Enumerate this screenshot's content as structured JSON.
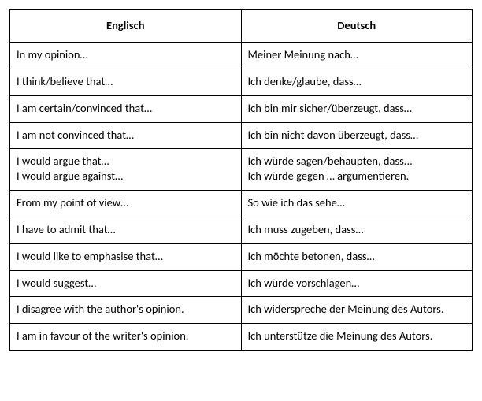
{
  "table": {
    "columns": [
      "Englisch",
      "Deutsch"
    ],
    "column_widths": [
      "50%",
      "50%"
    ],
    "header_font_weight": "bold",
    "header_align": "center",
    "cell_align": "left",
    "border_color": "#000000",
    "background_color": "#ffffff",
    "text_color": "#000000",
    "font_family": "Calibri",
    "font_size_pt": 11,
    "rows": [
      {
        "en": [
          "In my opinion…"
        ],
        "de": [
          "Meiner Meinung nach…"
        ]
      },
      {
        "en": [
          "I think/believe that…"
        ],
        "de": [
          "Ich denke/glaube, dass…"
        ]
      },
      {
        "en": [
          "I am certain/convinced that…"
        ],
        "de": [
          "Ich bin mir sicher/überzeugt, dass…"
        ]
      },
      {
        "en": [
          "I am not convinced that…"
        ],
        "de": [
          "Ich bin nicht davon überzeugt, dass…"
        ]
      },
      {
        "en": [
          "I would argue that…",
          "I would argue against…"
        ],
        "de": [
          "Ich würde sagen/behaupten, dass...",
          "Ich würde gegen … argumentieren."
        ]
      },
      {
        "en": [
          "From my point of view…"
        ],
        "de": [
          "So wie ich das sehe…"
        ]
      },
      {
        "en": [
          "I have to admit that…"
        ],
        "de": [
          "Ich muss zugeben, dass…"
        ]
      },
      {
        "en": [
          "I would like to emphasise that…"
        ],
        "de": [
          "Ich möchte betonen, dass…"
        ]
      },
      {
        "en": [
          "I would suggest…"
        ],
        "de": [
          "Ich würde vorschlagen…"
        ]
      },
      {
        "en": [
          "I disagree with the author's opinion."
        ],
        "de": [
          "Ich widerspreche der Meinung des Autors."
        ]
      },
      {
        "en": [
          "I am in favour of the writer's opinion."
        ],
        "de": [
          "Ich unterstütze die Meinung des Autors."
        ]
      }
    ]
  }
}
